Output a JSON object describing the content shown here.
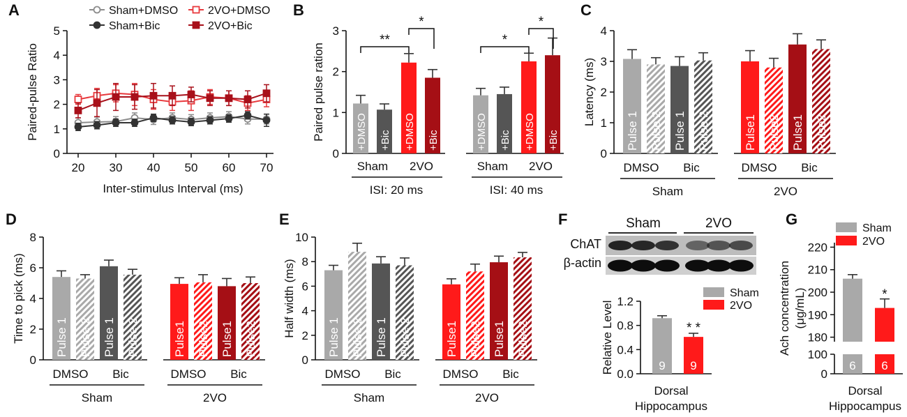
{
  "colors": {
    "sham_dmso": "#a9a9a9",
    "sham_bic": "#555555",
    "vo_dmso": "#ff1a1a",
    "vo_bic": "#a50f15",
    "sham_line": "#8c8c8c",
    "sham_bic_line": "#333333",
    "vo_line": "#e8393d",
    "vo_bic_line": "#a8101a"
  },
  "chart_data": [
    {
      "panel": "A",
      "type": "line",
      "ylabel": "Paired-pulse Ratio",
      "xlabel": "Inter-stimulus Interval (ms)",
      "x": [
        20,
        25,
        30,
        35,
        40,
        45,
        50,
        55,
        60,
        65,
        70
      ],
      "xticks": [
        "20",
        "30",
        "40",
        "50",
        "60",
        "70"
      ],
      "xlim": [
        15,
        72
      ],
      "yticks": [
        "0",
        "1",
        "2",
        "3",
        "4",
        "5"
      ],
      "ylim": [
        0,
        5
      ],
      "series": [
        {
          "name": "Sham+DMSO",
          "values": [
            1.25,
            1.28,
            1.3,
            1.45,
            1.38,
            1.45,
            1.38,
            1.45,
            1.5,
            1.4,
            1.4
          ],
          "err": [
            0.2,
            0.2,
            0.2,
            0.2,
            0.2,
            0.2,
            0.2,
            0.2,
            0.2,
            0.2,
            0.2
          ]
        },
        {
          "name": "2VO+DMSO",
          "values": [
            2.2,
            2.35,
            2.45,
            2.4,
            2.2,
            2.1,
            2.15,
            2.3,
            2.25,
            2.05,
            2.2
          ],
          "err": [
            0.2,
            0.3,
            0.35,
            0.45,
            0.4,
            0.35,
            0.4,
            0.3,
            0.3,
            0.3,
            0.3
          ]
        },
        {
          "name": "Sham+Bic",
          "values": [
            1.08,
            1.15,
            1.25,
            1.25,
            1.45,
            1.35,
            1.28,
            1.35,
            1.42,
            1.55,
            1.35
          ],
          "err": [
            0.15,
            0.15,
            0.15,
            0.15,
            0.15,
            0.15,
            0.15,
            0.15,
            0.15,
            0.15,
            0.25
          ]
        },
        {
          "name": "2VO+Bic",
          "values": [
            1.75,
            2.05,
            2.3,
            2.3,
            2.35,
            2.35,
            2.4,
            2.25,
            2.25,
            2.2,
            2.45
          ],
          "err": [
            0.3,
            0.55,
            0.55,
            0.5,
            0.5,
            0.4,
            0.3,
            0.3,
            0.3,
            0.35,
            0.35
          ]
        }
      ],
      "legend": [
        "Sham+DMSO",
        "Sham+Bic",
        "2VO+DMSO",
        "2VO+Bic"
      ]
    },
    {
      "panel": "B",
      "type": "bar",
      "ylabel": "Paired pulse ration",
      "yticks": [
        "0",
        "1",
        "2",
        "3"
      ],
      "ylim": [
        0,
        3
      ],
      "values": [
        1.22,
        1.07,
        2.22,
        1.85,
        1.42,
        1.45,
        2.25,
        2.4
      ],
      "err": [
        0.2,
        0.14,
        0.22,
        0.2,
        0.17,
        0.17,
        0.2,
        0.42
      ],
      "bar_labels": [
        "+DMSO",
        "+Bic",
        "+DMSO",
        "+Bic",
        "+DMSO",
        "+Bic",
        "+DMSO",
        "+Bic"
      ],
      "group_labels": [
        "Sham",
        "2VO",
        "Sham",
        "2VO"
      ],
      "isi_labels": [
        "ISI: 20 ms",
        "ISI: 40 ms"
      ],
      "significance": [
        "**",
        "*",
        "*",
        "*"
      ]
    },
    {
      "panel": "C",
      "type": "bar",
      "ylabel": "Latency (ms)",
      "yticks": [
        "0",
        "1",
        "2",
        "3",
        "4"
      ],
      "ylim": [
        0,
        4
      ],
      "values": [
        3.08,
        2.9,
        2.85,
        3.03,
        3.0,
        2.8,
        3.55,
        3.4
      ],
      "err": [
        0.3,
        0.22,
        0.3,
        0.25,
        0.35,
        0.3,
        0.35,
        0.3
      ],
      "bar_labels": [
        "Pulse 1",
        "Pulse 2",
        "Pulse 1",
        "Pulse 2",
        "Pulse1",
        "Pulse2",
        "Pulse1",
        "Pulse2"
      ],
      "drug_labels": [
        "DMSO",
        "Bic",
        "DMSO",
        "Bic"
      ],
      "group_labels": [
        "Sham",
        "2VO"
      ]
    },
    {
      "panel": "D",
      "type": "bar",
      "ylabel": "Time to pick (ms)",
      "yticks": [
        "0",
        "2",
        "4",
        "6",
        "8"
      ],
      "ylim": [
        0,
        8
      ],
      "values": [
        5.4,
        5.3,
        6.1,
        5.55,
        4.95,
        5.05,
        4.8,
        5.0
      ],
      "err": [
        0.4,
        0.25,
        0.4,
        0.35,
        0.4,
        0.5,
        0.5,
        0.4
      ],
      "bar_labels": [
        "Pulse 1",
        "Pulse 2",
        "Pulse 1",
        "Pulse 2",
        "Pulse1",
        "Pulse2",
        "Pulse1",
        "Pulse2"
      ],
      "drug_labels": [
        "DMSO",
        "Bic",
        "DMSO",
        "Bic"
      ],
      "group_labels": [
        "Sham",
        "2VO"
      ]
    },
    {
      "panel": "E",
      "type": "bar",
      "ylabel": "Half width (ms)",
      "yticks": [
        "0",
        "2",
        "4",
        "6",
        "8",
        "10"
      ],
      "ylim": [
        0,
        10
      ],
      "values": [
        7.3,
        8.8,
        7.85,
        7.7,
        6.15,
        7.2,
        7.95,
        8.35
      ],
      "err": [
        0.4,
        0.7,
        0.55,
        0.6,
        0.45,
        0.6,
        0.5,
        0.4
      ],
      "bar_labels": [
        "Pulse 1",
        "Pulse 2",
        "Pulse 1",
        "Pulse 2",
        "Pulse1",
        "Pulse2",
        "Pulse1",
        "Pulse2"
      ],
      "drug_labels": [
        "DMSO",
        "Bic",
        "DMSO",
        "Bic"
      ],
      "group_labels": [
        "Sham",
        "2VO"
      ]
    },
    {
      "panel": "F",
      "type": "bar",
      "ylabel": "Relative Level",
      "yticks": [
        "0.0",
        "0.4",
        "0.8",
        "1.2"
      ],
      "ylim": [
        0,
        1.2
      ],
      "values": [
        0.92,
        0.61
      ],
      "err": [
        0.04,
        0.06
      ],
      "n": [
        "9",
        "9"
      ],
      "series_names": [
        "Sham",
        "2VO"
      ],
      "significance": "* *",
      "xlabel": [
        "Dorsal",
        "Hippocampus"
      ],
      "blot": {
        "groups": [
          "Sham",
          "2VO"
        ],
        "rows": [
          "ChAT",
          "β-actin"
        ]
      }
    },
    {
      "panel": "G",
      "type": "bar",
      "ylabel": [
        "Ach concentration",
        "(μg/mL)"
      ],
      "yticks": [
        "0",
        "100",
        "180",
        "190",
        "200",
        "210",
        "220"
      ],
      "ylim_lower": [
        0,
        100
      ],
      "ylim_upper": [
        178,
        222
      ],
      "values": [
        206,
        193
      ],
      "err": [
        1.8,
        4
      ],
      "n": [
        "6",
        "6"
      ],
      "series_names": [
        "Sham",
        "2VO"
      ],
      "significance": "*",
      "xlabel": [
        "Dorsal",
        "Hippocampus"
      ]
    }
  ]
}
